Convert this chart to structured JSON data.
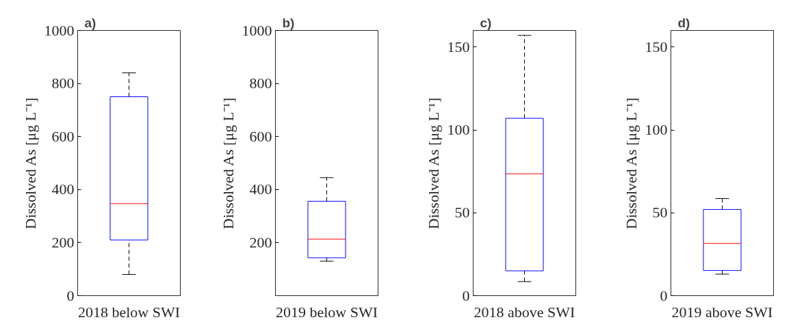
{
  "chart_data": [
    {
      "type": "box",
      "title": "a)",
      "ylabel": "Dissolved As [μg L⁻¹]",
      "categories": [
        "2018 below SWI"
      ],
      "boxes": [
        {
          "low": 80,
          "q1": 210,
          "median": 347,
          "q3": 750,
          "high": 840
        }
      ],
      "ylim": [
        0,
        1000
      ],
      "yticks": [
        0,
        200,
        400,
        600,
        800,
        1000
      ],
      "grid": false
    },
    {
      "type": "box",
      "title": "b)",
      "ylabel": "Dissolved As [μg L⁻¹]",
      "categories": [
        "2019 below SWI"
      ],
      "boxes": [
        {
          "low": 130,
          "q1": 143,
          "median": 213,
          "q3": 356,
          "high": 445
        }
      ],
      "ylim": [
        0,
        1000
      ],
      "yticks": [
        200,
        400,
        600,
        800,
        1000
      ],
      "grid": false
    },
    {
      "type": "box",
      "title": "c)",
      "ylabel": "Dissolved As [μg L⁻¹]",
      "categories": [
        "2018 above SWI"
      ],
      "boxes": [
        {
          "low": 8.5,
          "q1": 15,
          "median": 73.5,
          "q3": 107,
          "high": 157
        }
      ],
      "ylim": [
        0,
        160
      ],
      "yticks": [
        0,
        50,
        100,
        150
      ],
      "grid": false
    },
    {
      "type": "box",
      "title": "d)",
      "ylabel": "Dissolved As [μg L⁻¹]",
      "categories": [
        "2019 above SWI"
      ],
      "boxes": [
        {
          "low": 13,
          "q1": 15.2,
          "median": 31.5,
          "q3": 52,
          "high": 58.6
        }
      ],
      "ylim": [
        0,
        160
      ],
      "yticks": [
        0,
        50,
        100,
        150
      ],
      "grid": false
    }
  ]
}
